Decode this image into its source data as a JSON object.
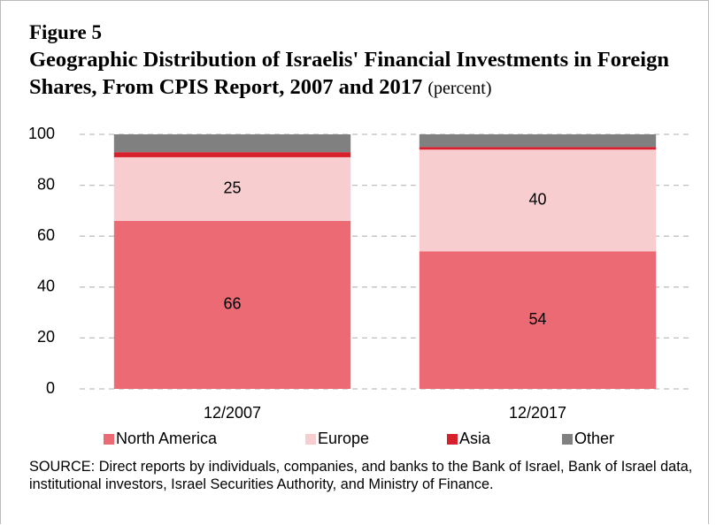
{
  "chart_data": {
    "type": "stacked_bar",
    "figure_label": "Figure 5",
    "title": "Geographic Distribution of Israelis' Financial Investments in Foreign Shares, From CPIS Report, 2007 and 2017",
    "unit": "(percent)",
    "categories": [
      "12/2007",
      "12/2017"
    ],
    "series": [
      {
        "name": "North America",
        "color": "#ec6a73",
        "values": [
          66,
          54
        ],
        "labels": true
      },
      {
        "name": "Europe",
        "color": "#f7cdd0",
        "values": [
          25,
          40
        ],
        "labels": true
      },
      {
        "name": "Asia",
        "color": "#d7202b",
        "values": [
          2,
          1
        ],
        "labels": false
      },
      {
        "name": "Other",
        "color": "#808080",
        "values": [
          7,
          5
        ],
        "labels": false
      }
    ],
    "ylim": [
      0,
      100
    ],
    "yticks": [
      0,
      20,
      40,
      60,
      80,
      100
    ],
    "grid": true,
    "legend": "bottom",
    "source": "SOURCE: Direct reports by individuals, companies, and banks to the Bank of Israel, Bank of Israel data, institutional investors, Israel Securities Authority, and Ministry of Finance."
  }
}
